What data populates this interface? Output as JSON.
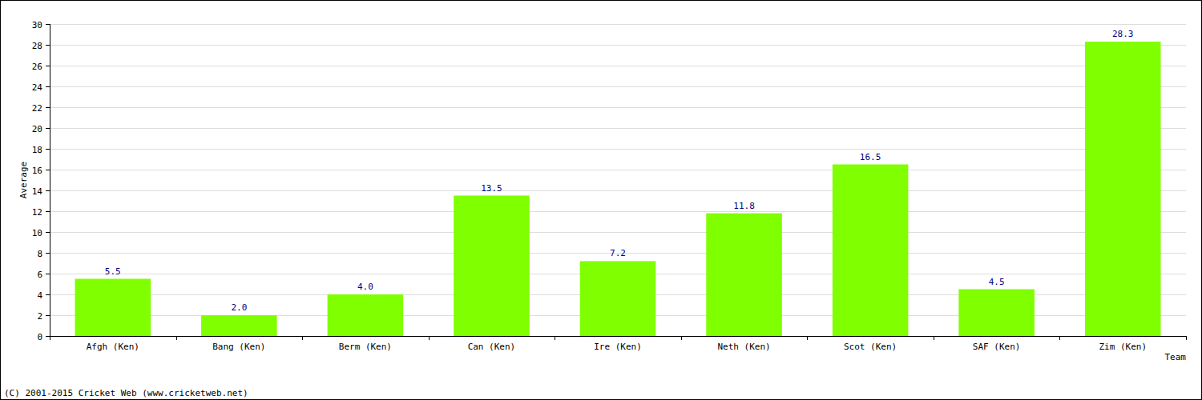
{
  "chart_data": {
    "type": "bar",
    "x_label": "Team",
    "y_label": "Average",
    "categories": [
      "Afgh (Ken)",
      "Bang (Ken)",
      "Berm (Ken)",
      "Can (Ken)",
      "Ire (Ken)",
      "Neth (Ken)",
      "Scot (Ken)",
      "SAF (Ken)",
      "Zim (Ken)"
    ],
    "values": [
      5.5,
      2.0,
      4.0,
      13.5,
      7.2,
      11.8,
      16.5,
      4.5,
      28.3
    ],
    "value_labels": [
      "5.5",
      "2.0",
      "4.0",
      "13.5",
      "7.2",
      "11.8",
      "16.5",
      "4.5",
      "28.3"
    ],
    "color": "#80ff00",
    "ylim": [
      0,
      30
    ],
    "yticks": [
      0,
      2,
      4,
      6,
      8,
      10,
      12,
      14,
      16,
      18,
      20,
      22,
      24,
      26,
      28,
      30
    ],
    "grid": true,
    "data_labels": true,
    "annotations": [
      "(C) 2001-2015 Cricket Web (www.cricketweb.net)"
    ]
  }
}
